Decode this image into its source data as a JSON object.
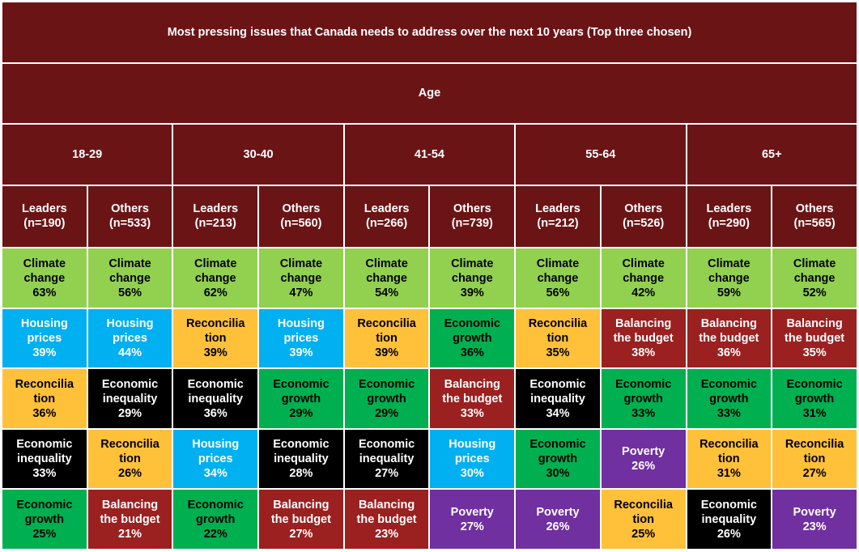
{
  "title": "Most pressing issues that Canada needs to address over the next 10 years (Top three chosen)",
  "age_label": "Age",
  "age_groups": [
    "18-29",
    "30-40",
    "41-54",
    "55-64",
    "65+"
  ],
  "columns": [
    {
      "role": "Leaders",
      "n": "(n=190)"
    },
    {
      "role": "Others",
      "n": "(n=533)"
    },
    {
      "role": "Leaders",
      "n": "(n=213)"
    },
    {
      "role": "Others",
      "n": "(n=560)"
    },
    {
      "role": "Leaders",
      "n": "(n=266)"
    },
    {
      "role": "Others",
      "n": "(n=739)"
    },
    {
      "role": "Leaders",
      "n": "(n=212)"
    },
    {
      "role": "Others",
      "n": "(n=526)"
    },
    {
      "role": "Leaders",
      "n": "(n=290)"
    },
    {
      "role": "Others",
      "n": "(n=565)"
    }
  ],
  "issue_colors": {
    "Climate change": {
      "bg": "#92d050",
      "fg": "#000000"
    },
    "Housing prices": {
      "bg": "#00b0f0",
      "fg": "#ffffff"
    },
    "Reconciliation": {
      "bg": "#ffc03a",
      "fg": "#000000"
    },
    "Economic inequality": {
      "bg": "#000000",
      "fg": "#ffffff"
    },
    "Economic growth": {
      "bg": "#00b050",
      "fg": "#000000"
    },
    "Balancing the budget": {
      "bg": "#9b2020",
      "fg": "#ffffff"
    },
    "Poverty": {
      "bg": "#7030a0",
      "fg": "#ffffff"
    }
  },
  "chart_data": {
    "type": "table",
    "title": "Most pressing issues that Canada needs to address over the next 10 years (Top three chosen)",
    "rows": [
      [
        {
          "issue": "Climate change",
          "lines": [
            "Climate",
            "change"
          ],
          "value": "63%"
        },
        {
          "issue": "Climate change",
          "lines": [
            "Climate",
            "change"
          ],
          "value": "56%"
        },
        {
          "issue": "Climate change",
          "lines": [
            "Climate",
            "change"
          ],
          "value": "62%"
        },
        {
          "issue": "Climate change",
          "lines": [
            "Climate",
            "change"
          ],
          "value": "47%"
        },
        {
          "issue": "Climate change",
          "lines": [
            "Climate",
            "change"
          ],
          "value": "54%"
        },
        {
          "issue": "Climate change",
          "lines": [
            "Climate",
            "change"
          ],
          "value": "39%"
        },
        {
          "issue": "Climate change",
          "lines": [
            "Climate",
            "change"
          ],
          "value": "56%"
        },
        {
          "issue": "Climate change",
          "lines": [
            "Climate",
            "change"
          ],
          "value": "42%"
        },
        {
          "issue": "Climate change",
          "lines": [
            "Climate",
            "change"
          ],
          "value": "59%"
        },
        {
          "issue": "Climate change",
          "lines": [
            "Climate",
            "change"
          ],
          "value": "52%"
        }
      ],
      [
        {
          "issue": "Housing prices",
          "lines": [
            "Housing",
            "prices"
          ],
          "value": "39%"
        },
        {
          "issue": "Housing prices",
          "lines": [
            "Housing",
            "prices"
          ],
          "value": "44%"
        },
        {
          "issue": "Reconciliation",
          "lines": [
            "Reconcilia",
            "tion"
          ],
          "value": "39%"
        },
        {
          "issue": "Housing prices",
          "lines": [
            "Housing",
            "prices"
          ],
          "value": "39%"
        },
        {
          "issue": "Reconciliation",
          "lines": [
            "Reconcilia",
            "tion"
          ],
          "value": "39%"
        },
        {
          "issue": "Economic growth",
          "lines": [
            "Economic",
            "growth"
          ],
          "value": "36%"
        },
        {
          "issue": "Reconciliation",
          "lines": [
            "Reconcilia",
            "tion"
          ],
          "value": "35%"
        },
        {
          "issue": "Balancing the budget",
          "lines": [
            "Balancing",
            "the budget"
          ],
          "value": "38%"
        },
        {
          "issue": "Balancing the budget",
          "lines": [
            "Balancing",
            "the budget"
          ],
          "value": "36%"
        },
        {
          "issue": "Balancing the budget",
          "lines": [
            "Balancing",
            "the budget"
          ],
          "value": "35%"
        }
      ],
      [
        {
          "issue": "Reconciliation",
          "lines": [
            "Reconcilia",
            "tion"
          ],
          "value": "36%"
        },
        {
          "issue": "Economic inequality",
          "lines": [
            "Economic",
            "inequality"
          ],
          "value": "29%"
        },
        {
          "issue": "Economic inequality",
          "lines": [
            "Economic",
            "inequality"
          ],
          "value": "36%"
        },
        {
          "issue": "Economic growth",
          "lines": [
            "Economic",
            "growth"
          ],
          "value": "29%"
        },
        {
          "issue": "Economic growth",
          "lines": [
            "Economic",
            "growth"
          ],
          "value": "29%"
        },
        {
          "issue": "Balancing the budget",
          "lines": [
            "Balancing",
            "the budget"
          ],
          "value": "33%"
        },
        {
          "issue": "Economic inequality",
          "lines": [
            "Economic",
            "inequality"
          ],
          "value": "34%"
        },
        {
          "issue": "Economic growth",
          "lines": [
            "Economic",
            "growth"
          ],
          "value": "33%"
        },
        {
          "issue": "Economic growth",
          "lines": [
            "Economic",
            "growth"
          ],
          "value": "33%"
        },
        {
          "issue": "Economic growth",
          "lines": [
            "Economic",
            "growth"
          ],
          "value": "31%"
        }
      ],
      [
        {
          "issue": "Economic inequality",
          "lines": [
            "Economic",
            "inequality"
          ],
          "value": "33%"
        },
        {
          "issue": "Reconciliation",
          "lines": [
            "Reconcilia",
            "tion"
          ],
          "value": "26%"
        },
        {
          "issue": "Housing prices",
          "lines": [
            "Housing",
            "prices"
          ],
          "value": "34%"
        },
        {
          "issue": "Economic inequality",
          "lines": [
            "Economic",
            "inequality"
          ],
          "value": "28%"
        },
        {
          "issue": "Economic inequality",
          "lines": [
            "Economic",
            "inequality"
          ],
          "value": "27%"
        },
        {
          "issue": "Housing prices",
          "lines": [
            "Housing",
            "prices"
          ],
          "value": "30%"
        },
        {
          "issue": "Economic growth",
          "lines": [
            "Economic",
            "growth"
          ],
          "value": "30%"
        },
        {
          "issue": "Poverty",
          "lines": [
            "Poverty"
          ],
          "value": "26%"
        },
        {
          "issue": "Reconciliation",
          "lines": [
            "Reconcilia",
            "tion"
          ],
          "value": "31%"
        },
        {
          "issue": "Reconciliation",
          "lines": [
            "Reconcilia",
            "tion"
          ],
          "value": "27%"
        }
      ],
      [
        {
          "issue": "Economic growth",
          "lines": [
            "Economic",
            "growth"
          ],
          "value": "25%"
        },
        {
          "issue": "Balancing the budget",
          "lines": [
            "Balancing",
            "the budget"
          ],
          "value": "21%"
        },
        {
          "issue": "Economic growth",
          "lines": [
            "Economic",
            "growth"
          ],
          "value": "22%"
        },
        {
          "issue": "Balancing the budget",
          "lines": [
            "Balancing",
            "the budget"
          ],
          "value": "27%"
        },
        {
          "issue": "Balancing the budget",
          "lines": [
            "Balancing",
            "the budget"
          ],
          "value": "23%"
        },
        {
          "issue": "Poverty",
          "lines": [
            "Poverty"
          ],
          "value": "27%"
        },
        {
          "issue": "Poverty",
          "lines": [
            "Poverty"
          ],
          "value": "26%"
        },
        {
          "issue": "Reconciliation",
          "lines": [
            "Reconcilia",
            "tion"
          ],
          "value": "25%"
        },
        {
          "issue": "Economic inequality",
          "lines": [
            "Economic",
            "inequality"
          ],
          "value": "26%"
        },
        {
          "issue": "Poverty",
          "lines": [
            "Poverty"
          ],
          "value": "23%"
        }
      ]
    ]
  }
}
